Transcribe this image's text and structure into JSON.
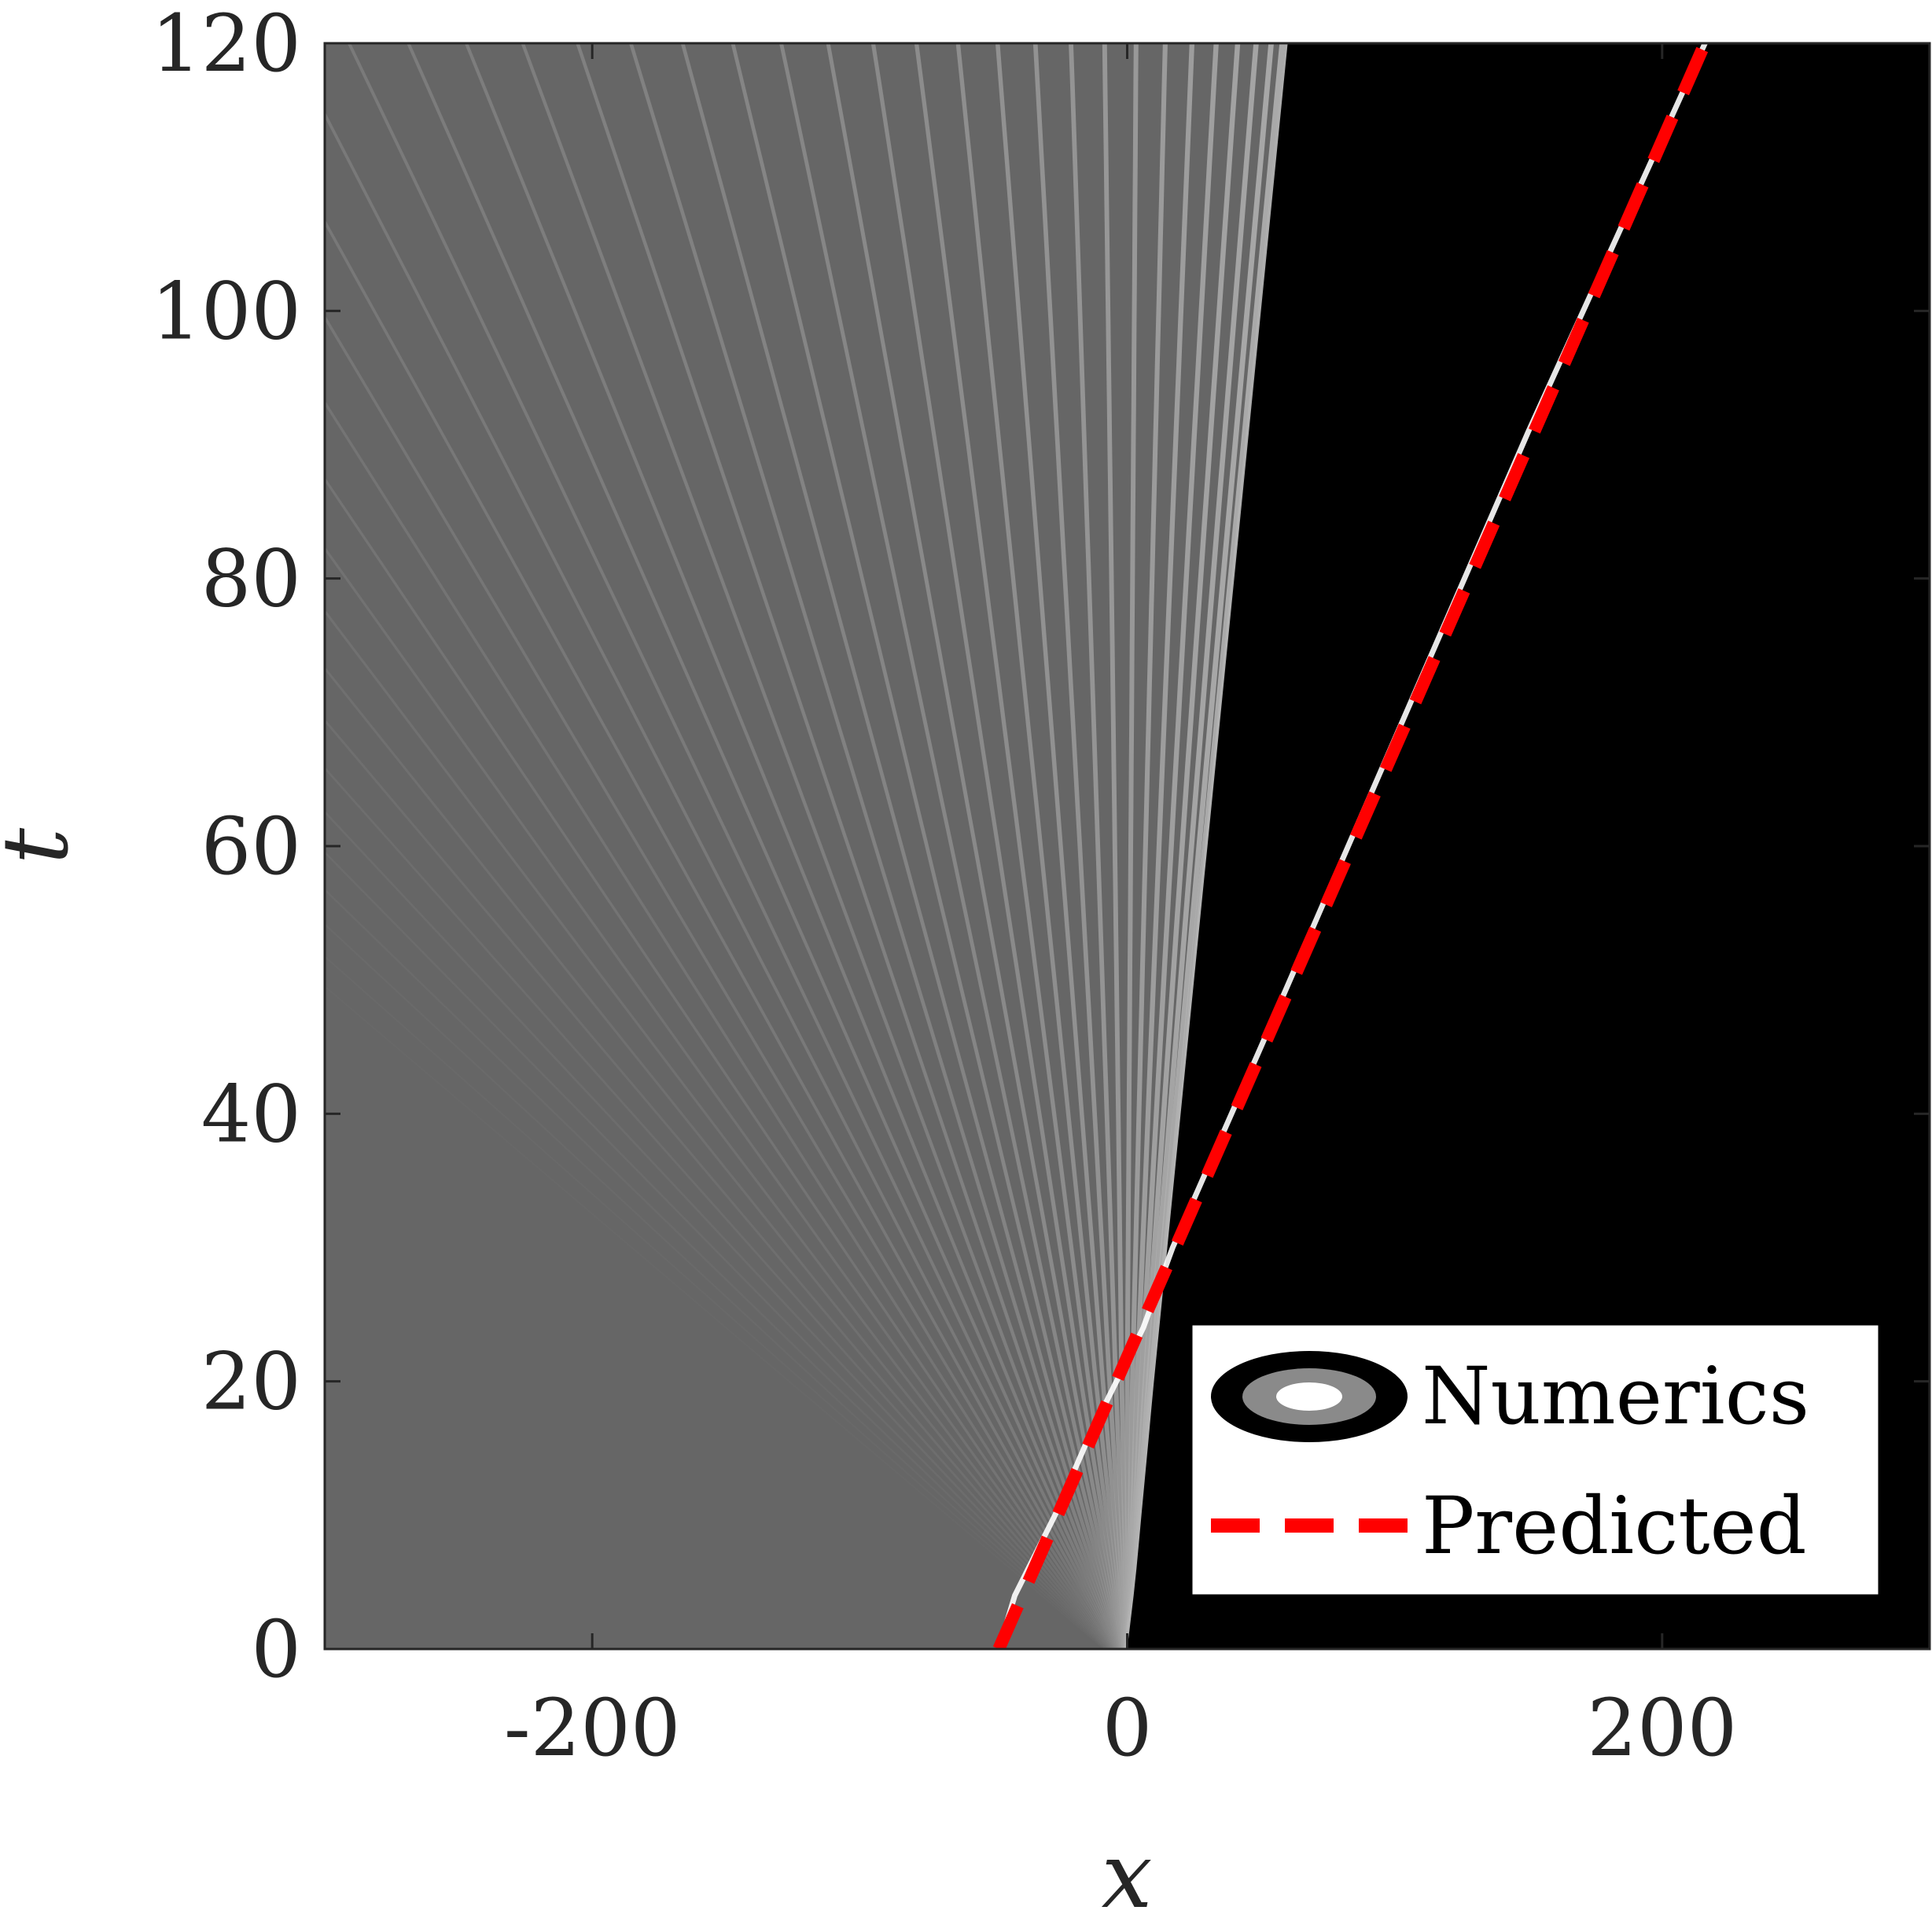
{
  "chart_data": {
    "type": "heatmap",
    "title": "",
    "xlabel": "x",
    "ylabel": "t",
    "xlim": [
      -300,
      300
    ],
    "ylim": [
      0,
      120
    ],
    "xticks": [
      -200,
      0,
      200
    ],
    "yticks": [
      0,
      20,
      40,
      60,
      80,
      100,
      120
    ],
    "xtick_labels": [
      "-200",
      "0",
      "200"
    ],
    "ytick_labels": [
      "0",
      "20",
      "40",
      "60",
      "80",
      "100",
      "120"
    ],
    "colormap": "grayscale",
    "legend": {
      "placement": "bottom-right",
      "entries": [
        {
          "label": "Numerics",
          "style": "grayscale-contour"
        },
        {
          "label": "Predicted",
          "style": "dashed-line",
          "color": "#ff0000"
        }
      ]
    },
    "series": [
      {
        "name": "Predicted",
        "style": "dashed",
        "color": "#ff0000",
        "x": [
          -48,
          216
        ],
        "y": [
          0,
          120
        ]
      },
      {
        "name": "Numerics",
        "style": "ridge",
        "color": "#ffffff",
        "x": [
          -48,
          -42,
          -27,
          -14,
          -4,
          6,
          17,
          50,
          100,
          150,
          216
        ],
        "y": [
          0,
          4,
          10,
          16,
          20,
          24,
          30,
          45,
          68,
          91,
          120
        ]
      }
    ],
    "wave_front": {
      "x": [
        0,
        3,
        10,
        25,
        45,
        60
      ],
      "y": [
        0,
        5,
        20,
        50,
        90,
        120
      ]
    }
  },
  "colors": {
    "background_field": "#666666",
    "right_region": "#000000",
    "predicted": "#ff0000",
    "ridge": "#ffffff",
    "axis": "#262626"
  }
}
